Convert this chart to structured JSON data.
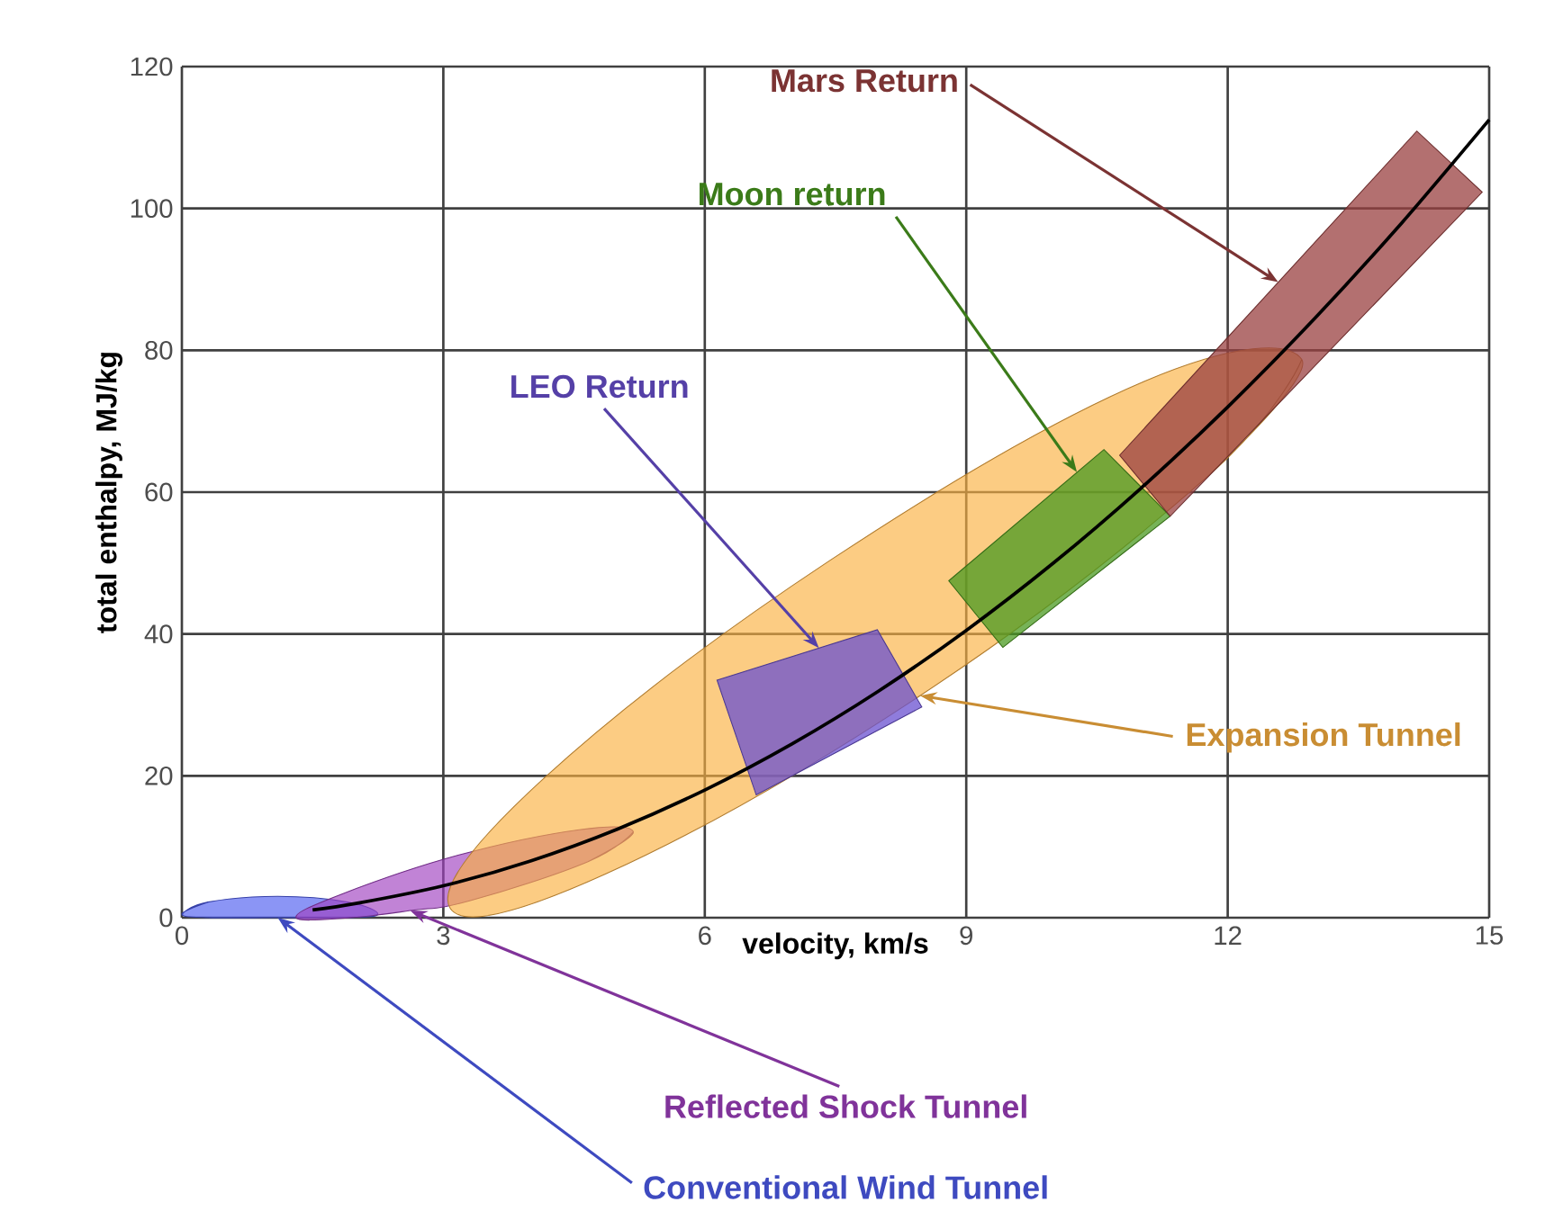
{
  "chart_data": {
    "type": "area",
    "xlabel": "velocity, km/s",
    "ylabel": "total enthalpy, MJ/kg",
    "xlim": [
      0,
      15
    ],
    "xticks": [
      0,
      3,
      6,
      9,
      12,
      15
    ],
    "ylim": [
      0,
      120
    ],
    "yticks": [
      0,
      20,
      40,
      60,
      80,
      100,
      120
    ],
    "grid": true,
    "series": [
      {
        "color": "#4d5cf0",
        "x": [
          0,
          0.3,
          1.1,
          1.9,
          2.25,
          1.9,
          1.1,
          0.3
        ],
        "values": [
          0.5,
          2.2,
          3,
          2.2,
          0.5,
          0,
          0,
          0
        ]
      },
      {
        "color": "#a040c0",
        "x": [
          5.18,
          4.66,
          3.31,
          2.62,
          1.93,
          1.31,
          1.83,
          3.17,
          4.56
        ],
        "values": [
          12.1,
          7.9,
          2.4,
          1.0,
          0,
          0,
          3.3,
          8.8,
          12.4
        ]
      },
      {
        "color": "#fbb040",
        "x": [
          12.85,
          11.76,
          8.47,
          4.87,
          3.08,
          4.15,
          7.44,
          11.04
        ],
        "values": [
          78.7,
          62.1,
          31.3,
          6.2,
          1.3,
          19.6,
          50.4,
          75.6
        ]
      },
      {
        "color": "#6a50d0",
        "x": [
          6.14,
          7.98,
          8.49,
          6.59
        ],
        "values": [
          33.5,
          40.6,
          29.7,
          17.3
        ]
      },
      {
        "color": "#4a9a20",
        "x": [
          8.8,
          10.58,
          11.34,
          9.42
        ],
        "values": [
          47.5,
          66,
          56.6,
          38.1
        ]
      },
      {
        "color": "#9a4040",
        "x": [
          10.76,
          14.17,
          14.92,
          11.34
        ],
        "values": [
          65.2,
          110.9,
          102.3,
          56.6
        ]
      },
      {
        "type": "line",
        "color": "#000000",
        "x": [
          1.5,
          2,
          3,
          4,
          5,
          6,
          7,
          8,
          9,
          10,
          11,
          12,
          13,
          14,
          15
        ],
        "values": [
          1.1,
          2,
          4.5,
          8,
          12.5,
          18,
          24.5,
          32,
          40.5,
          50,
          60.5,
          72,
          84.5,
          98,
          112.5
        ]
      }
    ],
    "annotations": [
      {
        "text": "Conventional Wind Tunnel",
        "x": 1.1,
        "y": 0
      },
      {
        "text": "Reflected Shock Tunnel",
        "x": 2.62,
        "y": 1.0
      },
      {
        "text": "Expansion Tunnel",
        "x": 8.47,
        "y": 31.3
      },
      {
        "text": "LEO Return",
        "x": 7.31,
        "y": 38.0
      },
      {
        "text": "Moon return",
        "x": 10.27,
        "y": 62.8
      },
      {
        "text": "Mars Return",
        "x": 12.58,
        "y": 89.6
      }
    ]
  }
}
